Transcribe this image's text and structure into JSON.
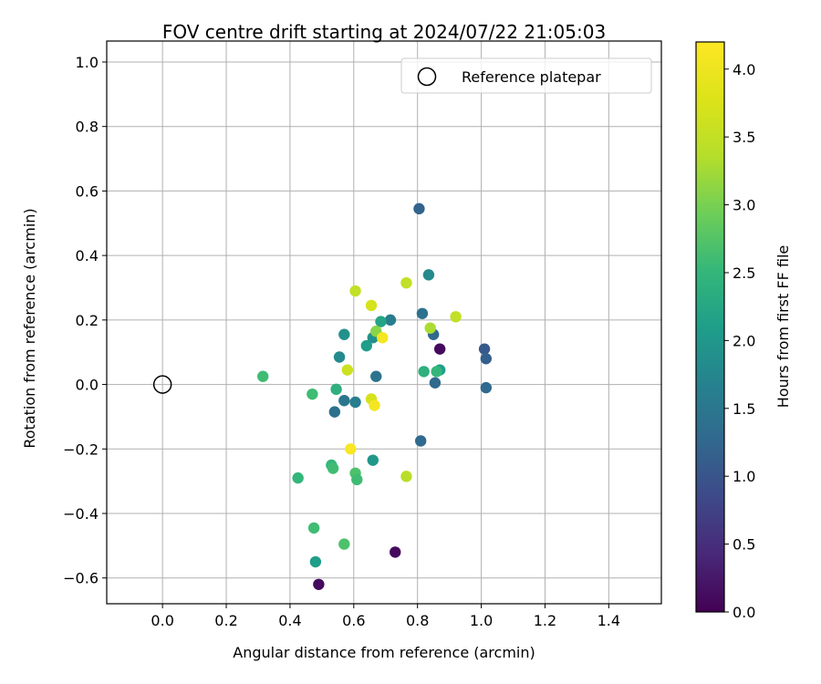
{
  "chart_data": {
    "type": "scatter",
    "title": "FOV centre drift starting at 2024/07/22 21:05:03",
    "xlabel": "Angular distance from reference (arcmin)",
    "ylabel": "Rotation from reference (arcmin)",
    "xlim": [
      -0.175,
      1.565
    ],
    "ylim": [
      -0.68,
      1.065
    ],
    "xticks": [
      0.0,
      0.2,
      0.4,
      0.6,
      0.8,
      1.0,
      1.2,
      1.4
    ],
    "xtick_labels": [
      "0.0",
      "0.2",
      "0.4",
      "0.6",
      "0.8",
      "1.0",
      "1.2",
      "1.4"
    ],
    "yticks": [
      -0.6,
      -0.4,
      -0.2,
      0.0,
      0.2,
      0.4,
      0.6,
      0.8,
      1.0
    ],
    "ytick_labels": [
      "−0.6",
      "−0.4",
      "−0.2",
      "0.0",
      "0.2",
      "0.4",
      "0.6",
      "0.8",
      "1.0"
    ],
    "grid": true,
    "legend": {
      "location": "top-right",
      "entries": [
        {
          "label": "Reference platepar",
          "marker": "open-circle"
        }
      ]
    },
    "reference_point": {
      "x": 0.0,
      "y": 0.0
    },
    "colorbar": {
      "label": "Hours from first FF file",
      "colormap": "viridis",
      "range": [
        0.0,
        4.2
      ],
      "ticks": [
        0.0,
        0.5,
        1.0,
        1.5,
        2.0,
        2.5,
        3.0,
        3.5,
        4.0
      ],
      "tick_labels": [
        "0.0",
        "0.5",
        "1.0",
        "1.5",
        "2.0",
        "2.5",
        "3.0",
        "3.5",
        "4.0"
      ]
    },
    "points": [
      {
        "x": 0.87,
        "y": 0.11,
        "c": 0.1
      },
      {
        "x": 0.73,
        "y": -0.52,
        "c": 0.1
      },
      {
        "x": 0.49,
        "y": -0.62,
        "c": 0.1
      },
      {
        "x": 0.805,
        "y": 0.545,
        "c": 1.2
      },
      {
        "x": 1.01,
        "y": 0.11,
        "c": 1.05
      },
      {
        "x": 1.015,
        "y": 0.08,
        "c": 1.15
      },
      {
        "x": 1.015,
        "y": -0.01,
        "c": 1.3
      },
      {
        "x": 0.815,
        "y": 0.22,
        "c": 1.4
      },
      {
        "x": 0.85,
        "y": 0.155,
        "c": 1.3
      },
      {
        "x": 0.855,
        "y": 0.005,
        "c": 1.3
      },
      {
        "x": 0.81,
        "y": -0.175,
        "c": 1.3
      },
      {
        "x": 0.54,
        "y": -0.085,
        "c": 1.4
      },
      {
        "x": 0.57,
        "y": -0.05,
        "c": 1.5
      },
      {
        "x": 0.605,
        "y": -0.055,
        "c": 1.6
      },
      {
        "x": 0.67,
        "y": 0.025,
        "c": 1.45
      },
      {
        "x": 0.715,
        "y": 0.2,
        "c": 1.6
      },
      {
        "x": 0.835,
        "y": 0.34,
        "c": 1.8
      },
      {
        "x": 0.555,
        "y": 0.085,
        "c": 1.8
      },
      {
        "x": 0.57,
        "y": 0.155,
        "c": 1.9
      },
      {
        "x": 0.66,
        "y": 0.145,
        "c": 1.9
      },
      {
        "x": 0.64,
        "y": 0.12,
        "c": 2.1
      },
      {
        "x": 0.685,
        "y": 0.195,
        "c": 2.2
      },
      {
        "x": 0.66,
        "y": -0.235,
        "c": 2.0
      },
      {
        "x": 0.48,
        "y": -0.55,
        "c": 2.1
      },
      {
        "x": 0.87,
        "y": 0.045,
        "c": 2.1
      },
      {
        "x": 0.82,
        "y": 0.04,
        "c": 2.4
      },
      {
        "x": 0.86,
        "y": 0.04,
        "c": 2.5
      },
      {
        "x": 0.545,
        "y": -0.015,
        "c": 2.4
      },
      {
        "x": 0.47,
        "y": -0.03,
        "c": 2.6
      },
      {
        "x": 0.315,
        "y": 0.025,
        "c": 2.6
      },
      {
        "x": 0.425,
        "y": -0.29,
        "c": 2.5
      },
      {
        "x": 0.53,
        "y": -0.25,
        "c": 2.5
      },
      {
        "x": 0.535,
        "y": -0.26,
        "c": 2.6
      },
      {
        "x": 0.605,
        "y": -0.275,
        "c": 2.7
      },
      {
        "x": 0.61,
        "y": -0.295,
        "c": 2.6
      },
      {
        "x": 0.475,
        "y": -0.445,
        "c": 2.6
      },
      {
        "x": 0.57,
        "y": -0.495,
        "c": 2.7
      },
      {
        "x": 0.67,
        "y": 0.165,
        "c": 3.1
      },
      {
        "x": 0.765,
        "y": -0.285,
        "c": 3.4
      },
      {
        "x": 0.84,
        "y": 0.175,
        "c": 3.3
      },
      {
        "x": 0.605,
        "y": 0.29,
        "c": 3.5
      },
      {
        "x": 0.765,
        "y": 0.315,
        "c": 3.5
      },
      {
        "x": 0.92,
        "y": 0.21,
        "c": 3.5
      },
      {
        "x": 0.58,
        "y": 0.045,
        "c": 3.6
      },
      {
        "x": 0.655,
        "y": 0.245,
        "c": 3.7
      },
      {
        "x": 0.655,
        "y": -0.045,
        "c": 3.7
      },
      {
        "x": 0.69,
        "y": 0.145,
        "c": 4.1
      },
      {
        "x": 0.665,
        "y": -0.065,
        "c": 4.1
      },
      {
        "x": 0.59,
        "y": -0.2,
        "c": 4.15
      }
    ]
  }
}
